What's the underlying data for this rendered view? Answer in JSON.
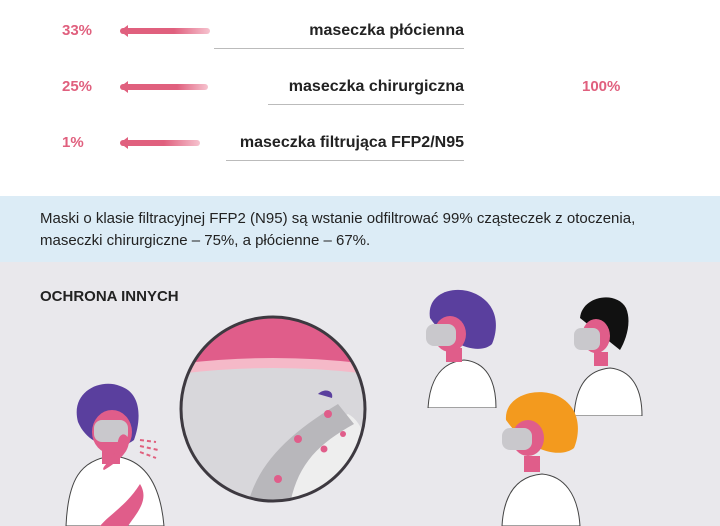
{
  "mask_rows": [
    {
      "percent": "33%",
      "label": "maseczka płócienna",
      "value": 33
    },
    {
      "percent": "25%",
      "label": "maseczka chirurgiczna",
      "value": 25
    },
    {
      "percent": "1%",
      "label": "maseczka filtrująca FFP2/N95",
      "value": 1
    }
  ],
  "reference_percent": "100%",
  "info": {
    "text": "Maski o klasie filtracyjnej FFP2 (N95) są wstanie odfiltrować 99% cząsteczek z otoczenia, maseczki chirurgiczne – 75%, a płócienne – 67%."
  },
  "section": {
    "title": "OCHRONA INNYCH"
  },
  "colors": {
    "accent": "#e0607e",
    "purple": "#5a3f9e",
    "orange": "#f39a1e",
    "black": "#111111",
    "mask_gray": "#c9c8cc",
    "info_bg": "#dcecf6",
    "section_bg": "#e9e8ec"
  },
  "icons": [
    "cough-person-icon",
    "mask-zoom-icon",
    "masked-person-purple-icon",
    "masked-person-black-icon",
    "masked-person-orange-icon"
  ]
}
